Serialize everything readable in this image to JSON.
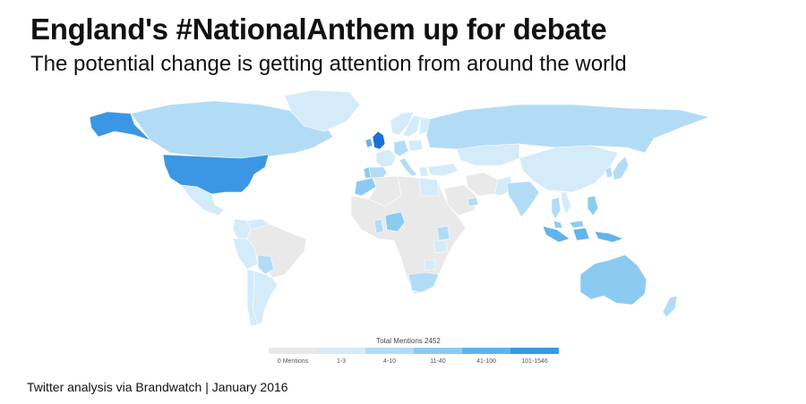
{
  "header": {
    "title": "England's #NationalAnthem up for debate",
    "subtitle": "The potential change is getting attention from around the world"
  },
  "map": {
    "regions": [
      {
        "name": "Canada",
        "bucket": 2
      },
      {
        "name": "Alaska",
        "bucket": 5
      },
      {
        "name": "United States",
        "bucket": 5
      },
      {
        "name": "Greenland",
        "bucket": 1
      },
      {
        "name": "Mexico",
        "bucket": 1
      },
      {
        "name": "Colombia",
        "bucket": 1
      },
      {
        "name": "Venezuela",
        "bucket": 1
      },
      {
        "name": "Peru",
        "bucket": 1
      },
      {
        "name": "Brazil",
        "bucket": 0
      },
      {
        "name": "Bolivia",
        "bucket": 2
      },
      {
        "name": "Chile",
        "bucket": 1
      },
      {
        "name": "Argentina",
        "bucket": 1
      },
      {
        "name": "United Kingdom",
        "bucket": 6
      },
      {
        "name": "Ireland",
        "bucket": 4
      },
      {
        "name": "Norway",
        "bucket": 1
      },
      {
        "name": "Sweden",
        "bucket": 1
      },
      {
        "name": "Finland",
        "bucket": 1
      },
      {
        "name": "France",
        "bucket": 1
      },
      {
        "name": "Spain",
        "bucket": 2
      },
      {
        "name": "Portugal",
        "bucket": 3
      },
      {
        "name": "Germany",
        "bucket": 2
      },
      {
        "name": "Poland",
        "bucket": 1
      },
      {
        "name": "Italy",
        "bucket": 2
      },
      {
        "name": "Greece",
        "bucket": 1
      },
      {
        "name": "Turkey",
        "bucket": 1
      },
      {
        "name": "Russia",
        "bucket": 2
      },
      {
        "name": "Kazakhstan",
        "bucket": 1
      },
      {
        "name": "Morocco",
        "bucket": 3
      },
      {
        "name": "Algeria",
        "bucket": 0
      },
      {
        "name": "Egypt",
        "bucket": 1
      },
      {
        "name": "Saudi Arabia",
        "bucket": 0
      },
      {
        "name": "United Arab Emirates",
        "bucket": 2
      },
      {
        "name": "Iran",
        "bucket": 0
      },
      {
        "name": "Pakistan",
        "bucket": 1
      },
      {
        "name": "India",
        "bucket": 2
      },
      {
        "name": "China",
        "bucket": 1
      },
      {
        "name": "Japan",
        "bucket": 2
      },
      {
        "name": "South Korea",
        "bucket": 2
      },
      {
        "name": "Thailand",
        "bucket": 2
      },
      {
        "name": "Vietnam",
        "bucket": 1
      },
      {
        "name": "Malaysia",
        "bucket": 3
      },
      {
        "name": "Philippines",
        "bucket": 3
      },
      {
        "name": "Indonesia",
        "bucket": 4
      },
      {
        "name": "Nigeria",
        "bucket": 3
      },
      {
        "name": "Ghana",
        "bucket": 2
      },
      {
        "name": "Kenya",
        "bucket": 2
      },
      {
        "name": "Tanzania",
        "bucket": 1
      },
      {
        "name": "Zimbabwe",
        "bucket": 1
      },
      {
        "name": "South Africa",
        "bucket": 2
      },
      {
        "name": "Africa (other)",
        "bucket": 0
      },
      {
        "name": "Australia",
        "bucket": 3
      },
      {
        "name": "New Zealand",
        "bucket": 2
      }
    ]
  },
  "legend": {
    "title": "Total Mentions 2452",
    "buckets": [
      {
        "label": "0 Mentions",
        "color": "#e9e9e9"
      },
      {
        "label": "1-3",
        "color": "#d4ebfa"
      },
      {
        "label": "4-10",
        "color": "#b2dcf5"
      },
      {
        "label": "11-40",
        "color": "#8ccbf1"
      },
      {
        "label": "41-100",
        "color": "#61b3ec"
      },
      {
        "label": "101-1546",
        "color": "#3b97e3"
      }
    ],
    "extra_colors": {
      "bucket_6": "#1d6fd4"
    }
  },
  "footer": {
    "source": "Twitter analysis via Brandwatch | January 2016"
  }
}
